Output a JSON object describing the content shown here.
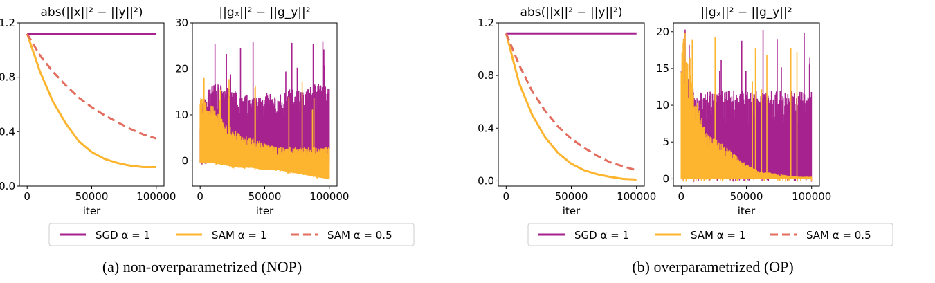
{
  "colors": {
    "sgd": "#a6228f",
    "sam1": "#fdb42f",
    "sam05": "#e36d5e"
  },
  "legend": [
    {
      "label": "SGD α = 1",
      "series": "sgd",
      "style": "solid"
    },
    {
      "label": "SAM α = 1",
      "series": "sam1",
      "style": "solid"
    },
    {
      "label": "SAM α = 0.5",
      "series": "sam05",
      "style": "dashed"
    }
  ],
  "captions": [
    "(a) non-overparametrized (NOP)",
    "(b) overparametrized (OP)"
  ],
  "chart_data": [
    {
      "type": "line",
      "title": "abs(||x||² − ||y||²)",
      "xlabel": "iter",
      "ylabel": "",
      "xlim": [
        -6000,
        106000
      ],
      "ylim": [
        0,
        1.2
      ],
      "xticks": [
        0,
        50000,
        100000
      ],
      "xtick_labels": [
        "0",
        "50000",
        "100000"
      ],
      "yticks": [
        0,
        0.4,
        0.8,
        1.2
      ],
      "ytick_labels": [
        "0.0",
        "0.4",
        "0.8",
        "1.2"
      ],
      "x": [
        0,
        10000,
        20000,
        30000,
        40000,
        50000,
        60000,
        70000,
        80000,
        90000,
        100000
      ],
      "series": [
        {
          "name": "SGD α = 1",
          "key": "sgd",
          "values": [
            1.12,
            1.12,
            1.12,
            1.12,
            1.12,
            1.12,
            1.12,
            1.12,
            1.12,
            1.12,
            1.12
          ]
        },
        {
          "name": "SAM α = 1",
          "key": "sam1",
          "values": [
            1.12,
            0.84,
            0.62,
            0.46,
            0.33,
            0.25,
            0.2,
            0.17,
            0.15,
            0.14,
            0.14
          ]
        },
        {
          "name": "SAM α = 0.5",
          "key": "sam05",
          "dashed": true,
          "values": [
            1.12,
            0.96,
            0.84,
            0.74,
            0.65,
            0.58,
            0.52,
            0.47,
            0.42,
            0.38,
            0.35
          ]
        }
      ]
    },
    {
      "type": "area",
      "title": "||gₓ||² − ||g_y||²",
      "xlabel": "iter",
      "ylabel": "",
      "xlim": [
        -6000,
        106000
      ],
      "ylim": [
        -5.5,
        30
      ],
      "xticks": [
        0,
        50000,
        100000
      ],
      "xtick_labels": [
        "0",
        "50000",
        "100000"
      ],
      "yticks": [
        0,
        10,
        20,
        30
      ],
      "ytick_labels": [
        "0",
        "10",
        "20",
        "30"
      ],
      "x": [
        0,
        10000,
        20000,
        30000,
        40000,
        50000,
        60000,
        70000,
        80000,
        90000,
        100000
      ],
      "series": [
        {
          "name": "SGD α = 1",
          "key": "sgd",
          "noisy": true,
          "upper": [
            13,
            17,
            16,
            15,
            14,
            15,
            14,
            16,
            15,
            17,
            16
          ],
          "lower": [
            -0.5,
            -0.5,
            -0.5,
            -0.5,
            -0.5,
            -0.5,
            -0.5,
            -0.5,
            -0.5,
            -0.5,
            -0.5
          ],
          "peak": 26
        },
        {
          "name": "SAM α = 1",
          "key": "sam1",
          "noisy": true,
          "upper": [
            14,
            12,
            8,
            6,
            5,
            4,
            3,
            3,
            3,
            3,
            3
          ],
          "lower": [
            -0.5,
            -0.5,
            -1,
            -1.5,
            -1.5,
            -2,
            -2,
            -2.5,
            -3,
            -3.5,
            -4
          ],
          "peak": 18
        }
      ]
    },
    {
      "type": "line",
      "title": "abs(||x||² − ||y||²)",
      "xlabel": "iter",
      "ylabel": "",
      "xlim": [
        -6000,
        106000
      ],
      "ylim": [
        -0.04,
        1.2
      ],
      "xticks": [
        0,
        50000,
        100000
      ],
      "xtick_labels": [
        "0",
        "50000",
        "100000"
      ],
      "yticks": [
        0,
        0.4,
        0.8,
        1.2
      ],
      "ytick_labels": [
        "0.0",
        "0.4",
        "0.8",
        "1.2"
      ],
      "x": [
        0,
        10000,
        20000,
        30000,
        40000,
        50000,
        60000,
        70000,
        80000,
        90000,
        100000
      ],
      "series": [
        {
          "name": "SGD α = 1",
          "key": "sgd",
          "values": [
            1.12,
            1.12,
            1.12,
            1.12,
            1.12,
            1.12,
            1.12,
            1.12,
            1.12,
            1.12,
            1.12
          ]
        },
        {
          "name": "SAM α = 1",
          "key": "sam1",
          "values": [
            1.12,
            0.74,
            0.5,
            0.33,
            0.21,
            0.13,
            0.08,
            0.05,
            0.03,
            0.015,
            0.01
          ]
        },
        {
          "name": "SAM α = 0.5",
          "key": "sam05",
          "dashed": true,
          "values": [
            1.12,
            0.88,
            0.68,
            0.53,
            0.41,
            0.32,
            0.25,
            0.19,
            0.14,
            0.11,
            0.08
          ]
        }
      ]
    },
    {
      "type": "area",
      "title": "||gₓ||² − ||g_y||²",
      "xlabel": "iter",
      "ylabel": "",
      "xlim": [
        -6000,
        106000
      ],
      "ylim": [
        -1.0,
        21.2
      ],
      "xticks": [
        0,
        50000,
        100000
      ],
      "xtick_labels": [
        "0",
        "50000",
        "100000"
      ],
      "yticks": [
        0,
        5,
        10,
        15,
        20
      ],
      "ytick_labels": [
        "0",
        "5",
        "10",
        "15",
        "20"
      ],
      "x": [
        0,
        10000,
        20000,
        30000,
        40000,
        50000,
        60000,
        70000,
        80000,
        90000,
        100000
      ],
      "series": [
        {
          "name": "SGD α = 1",
          "key": "sgd",
          "noisy": true,
          "upper": [
            16,
            12,
            12,
            12,
            12,
            12,
            12,
            12,
            12,
            12,
            12
          ],
          "lower": [
            0,
            0,
            0,
            0,
            0,
            0,
            0,
            0,
            0,
            0,
            0
          ],
          "peak": 20.3
        },
        {
          "name": "SAM α = 1",
          "key": "sam1",
          "noisy": true,
          "upper": [
            20,
            12,
            6,
            5,
            3.5,
            2,
            1,
            0.8,
            0.5,
            0.3,
            0.3
          ],
          "lower": [
            0,
            0,
            0,
            0,
            0,
            0,
            0,
            0,
            0,
            0,
            0
          ],
          "peak": 19.8
        }
      ]
    }
  ]
}
